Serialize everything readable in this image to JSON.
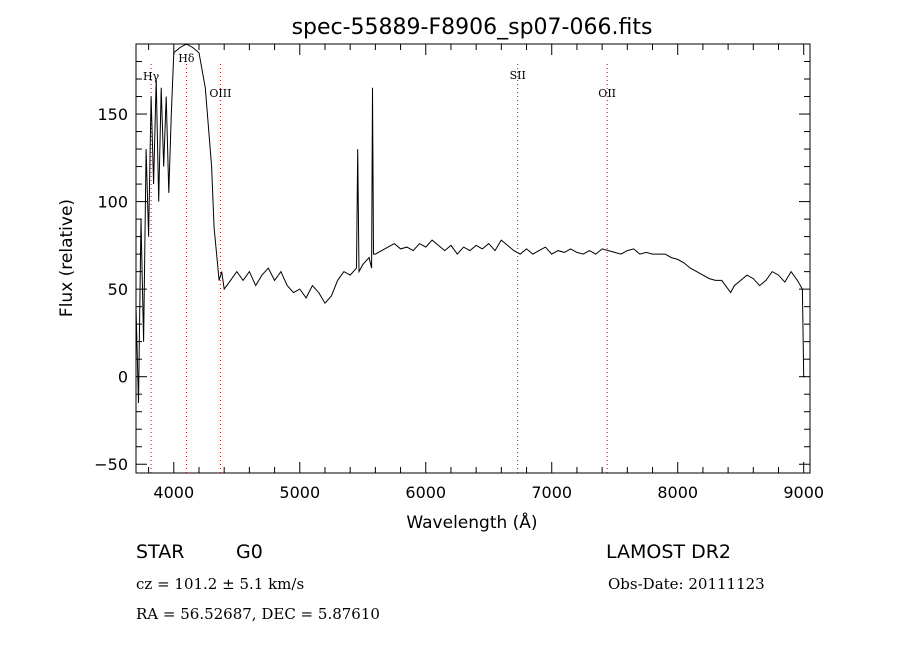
{
  "chart_data": {
    "type": "line",
    "title": "spec-55889-F8906_sp07-066.fits",
    "xlabel": "Wavelength (Å)",
    "ylabel": "Flux (relative)",
    "xlim": [
      3700,
      9050
    ],
    "ylim": [
      -55,
      190
    ],
    "x_ticks": [
      4000,
      5000,
      6000,
      7000,
      8000,
      9000
    ],
    "y_ticks": [
      -50,
      0,
      50,
      100,
      150
    ],
    "x_tick_labels": [
      "4000",
      "5000",
      "6000",
      "7000",
      "8000",
      "9000"
    ],
    "y_tick_labels": [
      "−50",
      "0",
      "50",
      "100",
      "150"
    ],
    "grid": false,
    "line_color": "#000000",
    "marker_color": "#cc0000",
    "series": [
      {
        "x": [
          3700,
          3720,
          3740,
          3760,
          3780,
          3800,
          3820,
          3840,
          3860,
          3880,
          3900,
          3920,
          3940,
          3960,
          3980,
          4000,
          4050,
          4100,
          4150,
          4200,
          4250,
          4300,
          4320,
          4340,
          4360,
          4380,
          4400,
          4450,
          4500,
          4550,
          4600,
          4650,
          4700,
          4750,
          4800,
          4850,
          4900,
          4950,
          5000,
          5050,
          5100,
          5150,
          5200,
          5250,
          5300,
          5350,
          5400,
          5450,
          5460,
          5470,
          5500,
          5550,
          5570,
          5577,
          5585,
          5600,
          5650,
          5700,
          5750,
          5800,
          5850,
          5900,
          5950,
          6000,
          6050,
          6100,
          6150,
          6200,
          6250,
          6300,
          6350,
          6400,
          6450,
          6500,
          6550,
          6600,
          6650,
          6700,
          6750,
          6800,
          6850,
          6900,
          6950,
          7000,
          7050,
          7100,
          7150,
          7200,
          7250,
          7300,
          7350,
          7400,
          7450,
          7500,
          7550,
          7600,
          7650,
          7700,
          7750,
          7800,
          7850,
          7900,
          7950,
          8000,
          8050,
          8100,
          8150,
          8200,
          8250,
          8300,
          8350,
          8400,
          8420,
          8450,
          8500,
          8550,
          8600,
          8650,
          8700,
          8750,
          8800,
          8850,
          8900,
          8950,
          8990,
          9000,
          9010
        ],
        "y": [
          40,
          -15,
          90,
          20,
          130,
          80,
          160,
          110,
          170,
          100,
          165,
          120,
          160,
          105,
          150,
          185,
          188,
          190,
          188,
          185,
          165,
          120,
          85,
          70,
          55,
          60,
          50,
          55,
          60,
          55,
          60,
          52,
          58,
          62,
          55,
          60,
          52,
          48,
          50,
          45,
          52,
          48,
          42,
          46,
          55,
          60,
          58,
          62,
          130,
          60,
          64,
          68,
          62,
          165,
          70,
          70,
          72,
          74,
          76,
          73,
          74,
          72,
          76,
          74,
          78,
          75,
          72,
          75,
          70,
          74,
          72,
          75,
          73,
          76,
          72,
          78,
          75,
          72,
          70,
          73,
          70,
          72,
          74,
          70,
          72,
          71,
          73,
          71,
          70,
          72,
          70,
          73,
          72,
          71,
          70,
          72,
          73,
          70,
          71,
          70,
          70,
          70,
          68,
          67,
          65,
          62,
          60,
          58,
          56,
          55,
          55,
          50,
          48,
          52,
          55,
          58,
          56,
          52,
          55,
          60,
          58,
          54,
          60,
          55,
          50,
          0,
          0
        ]
      }
    ],
    "lines": [
      {
        "label": "Hγ",
        "x": 3820
      },
      {
        "label": "Hδ",
        "x": 4100
      },
      {
        "label": "OIII",
        "x": 4370
      },
      {
        "label": "SII",
        "x": 6730
      },
      {
        "label": "OII",
        "x": 7440
      }
    ]
  },
  "info": {
    "object_class": "STAR",
    "subclass": "G0",
    "survey": "LAMOST DR2",
    "cz": "cz = 101.2 ± 5.1 km/s",
    "obs_date": "Obs-Date: 20111123",
    "coords": "RA =  56.52687, DEC =   5.87610"
  }
}
